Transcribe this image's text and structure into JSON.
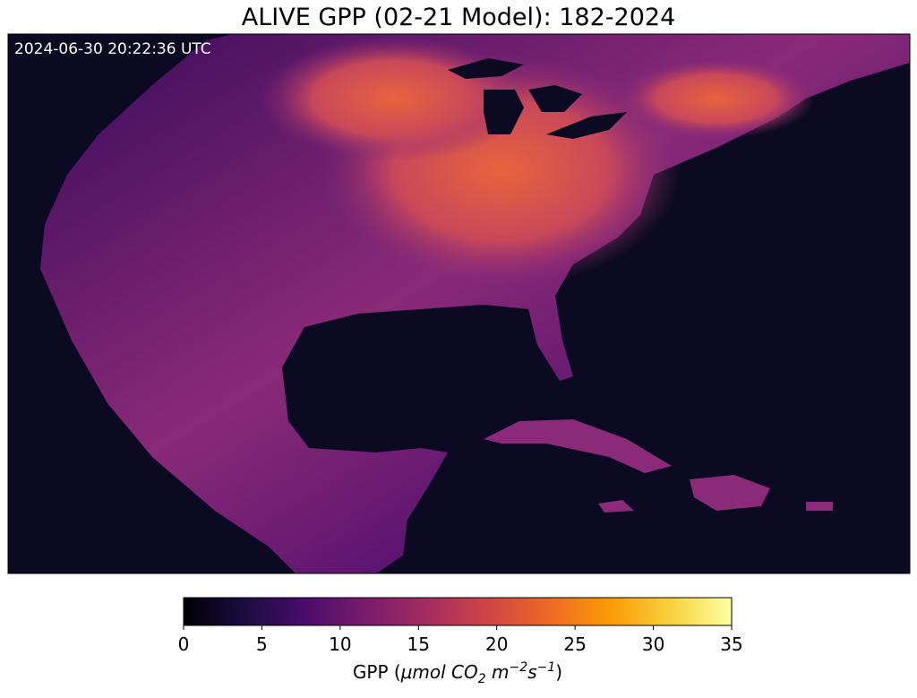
{
  "title": "ALIVE GPP (02-21 Model): 182-2024",
  "timestamp": "2024-06-30 20:22:36 UTC",
  "colorbar": {
    "colormap": "inferno",
    "lim": [
      0,
      35
    ],
    "ticks": [
      0,
      5,
      10,
      15,
      20,
      25,
      30,
      35
    ],
    "label": {
      "name": "GPP (",
      "unit": "μmol CO",
      "sub": "2",
      "unit2": " m",
      "sup1": "−2",
      "unit3": "s",
      "sup2": "−1",
      "close": ")"
    }
  }
}
